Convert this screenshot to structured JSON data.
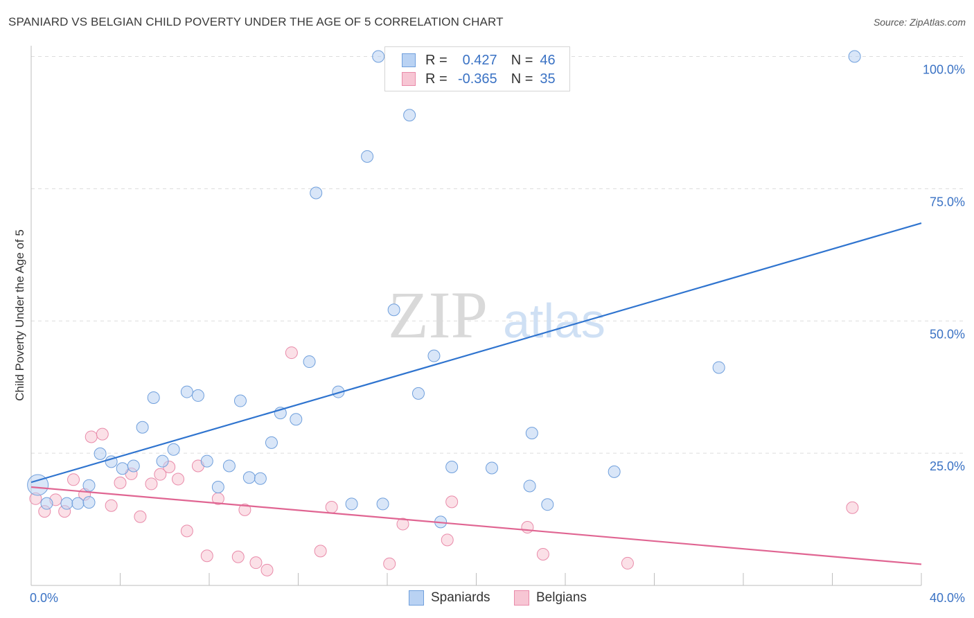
{
  "title": "SPANIARD VS BELGIAN CHILD POVERTY UNDER THE AGE OF 5 CORRELATION CHART",
  "source": "Source: ZipAtlas.com",
  "watermark": {
    "zip": "ZIP",
    "atlas": "atlas"
  },
  "legend": {
    "spaniards": {
      "r_label": "R =",
      "r_value": "0.427",
      "n_label": "N =",
      "n_value": "46"
    },
    "belgians": {
      "r_label": "R =",
      "r_value": "-0.365",
      "n_label": "N =",
      "n_value": "35"
    }
  },
  "bottom_legend": {
    "spaniards": "Spaniards",
    "belgians": "Belgians"
  },
  "colors": {
    "spaniards_fill": "#b9d2f3",
    "spaniards_stroke": "#6f9fdc",
    "spaniards_line": "#2f74cf",
    "belgians_fill": "#f7c6d4",
    "belgians_stroke": "#e98aa9",
    "belgians_line": "#e06592",
    "tick_label": "#3a72c4",
    "grid": "#dcdcdc"
  },
  "chart_data": {
    "type": "scatter",
    "title": "SPANIARD VS BELGIAN CHILD POVERTY UNDER THE AGE OF 5 CORRELATION CHART",
    "xlabel": "",
    "ylabel": "Child Poverty Under the Age of 5",
    "xlim": [
      0,
      40
    ],
    "ylim": [
      0,
      100
    ],
    "x_tick_labels": [
      "0.0%",
      "40.0%"
    ],
    "y_ticks": [
      25,
      50,
      75,
      100
    ],
    "y_tick_labels": [
      "25.0%",
      "50.0%",
      "75.0%",
      "100.0%"
    ],
    "grid": true,
    "legend_position": "top-center",
    "series": [
      {
        "name": "Spaniards",
        "r": 0.427,
        "n": 46,
        "trend": [
          [
            0,
            19.5
          ],
          [
            40,
            68.5
          ]
        ],
        "points": [
          [
            0.3,
            19.0
          ],
          [
            0.7,
            15.5
          ],
          [
            1.6,
            15.5
          ],
          [
            2.1,
            15.5
          ],
          [
            2.6,
            15.7
          ],
          [
            2.6,
            18.9
          ],
          [
            3.1,
            24.9
          ],
          [
            3.6,
            23.4
          ],
          [
            4.1,
            22.1
          ],
          [
            4.6,
            22.6
          ],
          [
            5.0,
            29.9
          ],
          [
            5.5,
            35.5
          ],
          [
            5.9,
            23.5
          ],
          [
            6.4,
            25.7
          ],
          [
            7.0,
            36.6
          ],
          [
            7.5,
            35.9
          ],
          [
            7.9,
            23.5
          ],
          [
            8.4,
            18.6
          ],
          [
            8.9,
            22.6
          ],
          [
            9.4,
            34.9
          ],
          [
            9.8,
            20.4
          ],
          [
            10.3,
            20.2
          ],
          [
            10.8,
            27.0
          ],
          [
            11.2,
            32.6
          ],
          [
            11.9,
            31.4
          ],
          [
            12.5,
            42.3
          ],
          [
            12.8,
            74.2
          ],
          [
            13.8,
            36.6
          ],
          [
            14.4,
            15.4
          ],
          [
            15.1,
            81.1
          ],
          [
            15.6,
            100.0
          ],
          [
            15.8,
            15.4
          ],
          [
            16.3,
            52.1
          ],
          [
            17.0,
            88.9
          ],
          [
            17.4,
            36.3
          ],
          [
            18.1,
            43.4
          ],
          [
            18.4,
            12.0
          ],
          [
            18.9,
            22.4
          ],
          [
            19.8,
            100.0
          ],
          [
            20.7,
            22.2
          ],
          [
            22.4,
            18.8
          ],
          [
            22.5,
            28.8
          ],
          [
            23.2,
            15.3
          ],
          [
            26.2,
            21.5
          ],
          [
            30.9,
            41.2
          ],
          [
            37.0,
            100.0
          ]
        ]
      },
      {
        "name": "Belgians",
        "r": -0.365,
        "n": 35,
        "trend": [
          [
            0,
            18.6
          ],
          [
            40,
            4.0
          ]
        ],
        "points": [
          [
            0.2,
            16.4
          ],
          [
            0.6,
            14.0
          ],
          [
            1.1,
            16.2
          ],
          [
            1.5,
            14.0
          ],
          [
            1.9,
            20.0
          ],
          [
            2.4,
            17.2
          ],
          [
            2.7,
            28.1
          ],
          [
            3.2,
            28.6
          ],
          [
            3.6,
            15.1
          ],
          [
            4.0,
            19.4
          ],
          [
            4.5,
            21.1
          ],
          [
            4.9,
            13.0
          ],
          [
            5.4,
            19.2
          ],
          [
            5.8,
            21.0
          ],
          [
            6.2,
            22.4
          ],
          [
            6.6,
            20.1
          ],
          [
            7.0,
            10.3
          ],
          [
            7.5,
            22.6
          ],
          [
            7.9,
            5.6
          ],
          [
            8.4,
            16.4
          ],
          [
            9.3,
            5.4
          ],
          [
            9.6,
            14.3
          ],
          [
            10.1,
            4.3
          ],
          [
            10.6,
            2.9
          ],
          [
            11.7,
            44.0
          ],
          [
            13.0,
            6.5
          ],
          [
            13.5,
            14.8
          ],
          [
            16.1,
            4.1
          ],
          [
            16.7,
            11.6
          ],
          [
            18.7,
            8.6
          ],
          [
            18.9,
            15.8
          ],
          [
            22.3,
            11.0
          ],
          [
            23.0,
            5.9
          ],
          [
            26.8,
            4.2
          ],
          [
            36.9,
            14.7
          ]
        ]
      }
    ]
  }
}
